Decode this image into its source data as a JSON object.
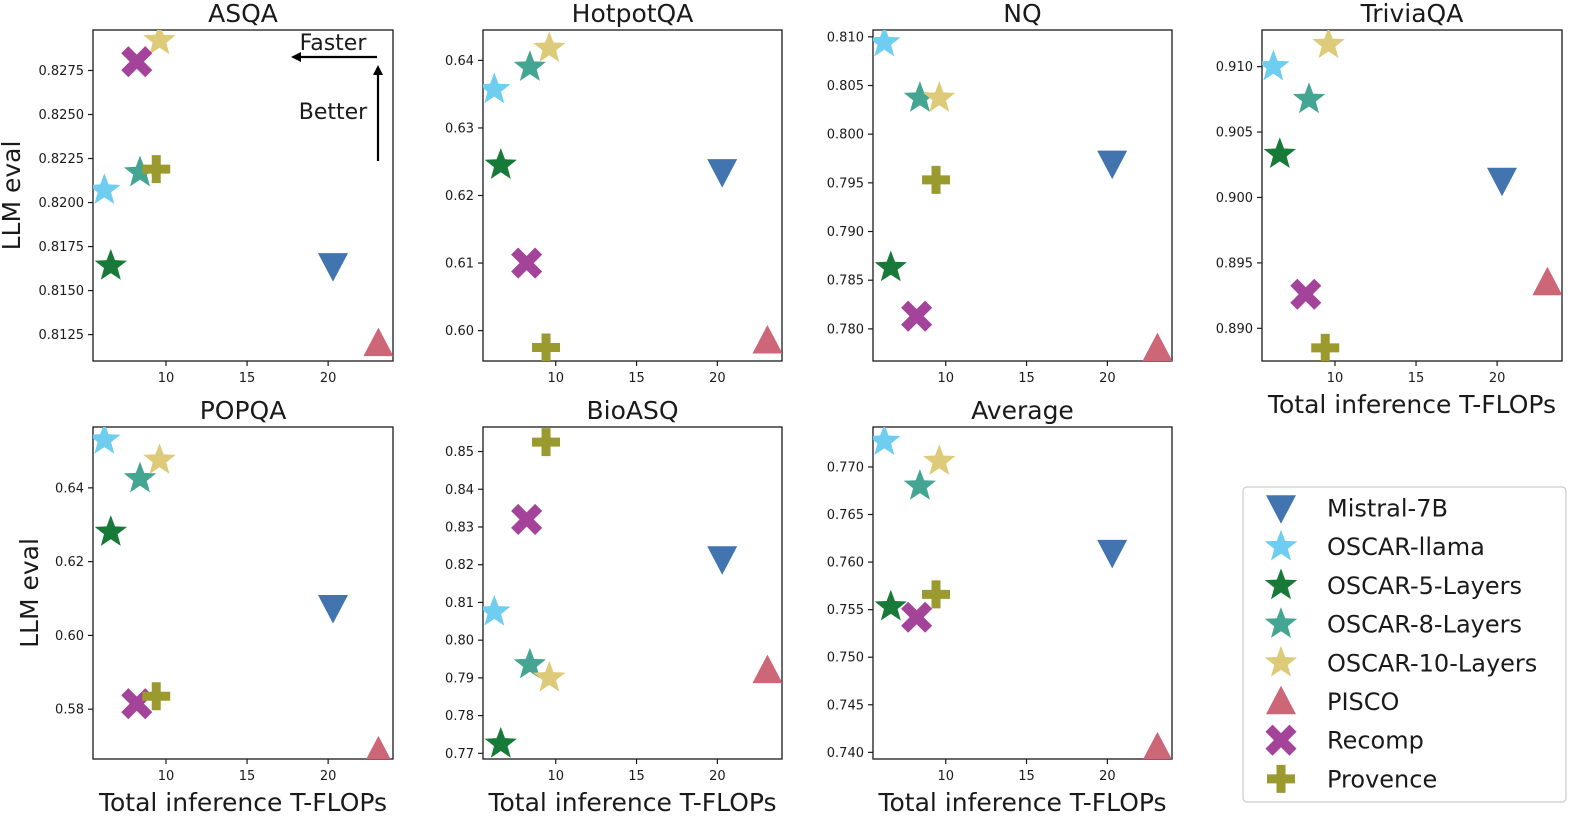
{
  "figure_ylabel": "LLM eval",
  "figure_xlabel": "Total inference T-FLOPs",
  "annotations": {
    "faster": "Faster",
    "better": "Better"
  },
  "legend": [
    {
      "name": "Mistral-7B",
      "marker": "triangle-down",
      "color": "#4274b0"
    },
    {
      "name": "OSCAR-llama",
      "marker": "star",
      "color": "#6fcdef"
    },
    {
      "name": "OSCAR-5-Layers",
      "marker": "star",
      "color": "#177a39"
    },
    {
      "name": "OSCAR-8-Layers",
      "marker": "star",
      "color": "#44a593"
    },
    {
      "name": "OSCAR-10-Layers",
      "marker": "star",
      "color": "#ddcb79"
    },
    {
      "name": "PISCO",
      "marker": "triangle-up",
      "color": "#cd6677"
    },
    {
      "name": "Recomp",
      "marker": "x",
      "color": "#a3439a"
    },
    {
      "name": "Provence",
      "marker": "plus",
      "color": "#9a9a2f"
    }
  ],
  "chart_data": [
    {
      "type": "scatter",
      "title": "ASQA",
      "xlabel": "",
      "ylabel": "LLM eval",
      "xlim": [
        5.5,
        24
      ],
      "ylim": [
        0.811,
        0.8298
      ],
      "xticks": [
        "10",
        "15",
        "20"
      ],
      "yticks": [
        "0.8125",
        "0.8150",
        "0.8175",
        "0.8200",
        "0.8225",
        "0.8250",
        "0.8275"
      ],
      "points": [
        {
          "series": "Mistral-7B",
          "x": 20.3,
          "y": 0.8164
        },
        {
          "series": "OSCAR-llama",
          "x": 6.2,
          "y": 0.8207
        },
        {
          "series": "OSCAR-5-Layers",
          "x": 6.6,
          "y": 0.8164
        },
        {
          "series": "OSCAR-8-Layers",
          "x": 8.4,
          "y": 0.8217
        },
        {
          "series": "OSCAR-10-Layers",
          "x": 9.6,
          "y": 0.8292
        },
        {
          "series": "PISCO",
          "x": 23.1,
          "y": 0.812
        },
        {
          "series": "Recomp",
          "x": 8.2,
          "y": 0.828
        },
        {
          "series": "Provence",
          "x": 9.4,
          "y": 0.8219
        }
      ]
    },
    {
      "type": "scatter",
      "title": "HotpotQA",
      "xlabel": "",
      "ylabel": "",
      "xlim": [
        5.5,
        24
      ],
      "ylim": [
        0.5955,
        0.6445
      ],
      "xticks": [
        "10",
        "15",
        "20"
      ],
      "yticks": [
        "0.60",
        "0.61",
        "0.62",
        "0.63",
        "0.64"
      ],
      "points": [
        {
          "series": "Mistral-7B",
          "x": 20.3,
          "y": 0.6235
        },
        {
          "series": "OSCAR-llama",
          "x": 6.2,
          "y": 0.6357
        },
        {
          "series": "OSCAR-5-Layers",
          "x": 6.6,
          "y": 0.6245
        },
        {
          "series": "OSCAR-8-Layers",
          "x": 8.4,
          "y": 0.639
        },
        {
          "series": "OSCAR-10-Layers",
          "x": 9.6,
          "y": 0.6418
        },
        {
          "series": "PISCO",
          "x": 23.1,
          "y": 0.5985
        },
        {
          "series": "Recomp",
          "x": 8.2,
          "y": 0.61
        },
        {
          "series": "Provence",
          "x": 9.4,
          "y": 0.5975
        }
      ]
    },
    {
      "type": "scatter",
      "title": "NQ",
      "xlabel": "",
      "ylabel": "",
      "xlim": [
        5.5,
        24
      ],
      "ylim": [
        0.7767,
        0.8107
      ],
      "xticks": [
        "10",
        "15",
        "20"
      ],
      "yticks": [
        "0.780",
        "0.785",
        "0.790",
        "0.795",
        "0.800",
        "0.805",
        "0.810"
      ],
      "points": [
        {
          "series": "Mistral-7B",
          "x": 20.3,
          "y": 0.797
        },
        {
          "series": "OSCAR-llama",
          "x": 6.2,
          "y": 0.8094
        },
        {
          "series": "OSCAR-5-Layers",
          "x": 6.6,
          "y": 0.7863
        },
        {
          "series": "OSCAR-8-Layers",
          "x": 8.4,
          "y": 0.8037
        },
        {
          "series": "OSCAR-10-Layers",
          "x": 9.6,
          "y": 0.8037
        },
        {
          "series": "PISCO",
          "x": 23.1,
          "y": 0.778
        },
        {
          "series": "Recomp",
          "x": 8.2,
          "y": 0.7813
        },
        {
          "series": "Provence",
          "x": 9.4,
          "y": 0.7953
        }
      ]
    },
    {
      "type": "scatter",
      "title": "TriviaQA",
      "xlabel": "Total inference T-FLOPs",
      "ylabel": "",
      "xlim": [
        5.5,
        24
      ],
      "ylim": [
        0.8875,
        0.9128
      ],
      "xticks": [
        "10",
        "15",
        "20"
      ],
      "yticks": [
        "0.890",
        "0.895",
        "0.900",
        "0.905",
        "0.910"
      ],
      "points": [
        {
          "series": "Mistral-7B",
          "x": 20.3,
          "y": 0.9013
        },
        {
          "series": "OSCAR-llama",
          "x": 6.2,
          "y": 0.91
        },
        {
          "series": "OSCAR-5-Layers",
          "x": 6.6,
          "y": 0.9033
        },
        {
          "series": "OSCAR-8-Layers",
          "x": 8.4,
          "y": 0.9075
        },
        {
          "series": "OSCAR-10-Layers",
          "x": 9.6,
          "y": 0.9117
        },
        {
          "series": "PISCO",
          "x": 23.1,
          "y": 0.8935
        },
        {
          "series": "Recomp",
          "x": 8.2,
          "y": 0.8926
        },
        {
          "series": "Provence",
          "x": 9.4,
          "y": 0.8885
        }
      ]
    },
    {
      "type": "scatter",
      "title": "POPQA",
      "xlabel": "Total inference T-FLOPs",
      "ylabel": "LLM eval",
      "xlim": [
        5.5,
        24
      ],
      "ylim": [
        0.5665,
        0.6565
      ],
      "xticks": [
        "10",
        "15",
        "20"
      ],
      "yticks": [
        "0.58",
        "0.60",
        "0.62",
        "0.64"
      ],
      "points": [
        {
          "series": "Mistral-7B",
          "x": 20.3,
          "y": 0.6075
        },
        {
          "series": "OSCAR-llama",
          "x": 6.2,
          "y": 0.653
        },
        {
          "series": "OSCAR-5-Layers",
          "x": 6.6,
          "y": 0.628
        },
        {
          "series": "OSCAR-8-Layers",
          "x": 8.4,
          "y": 0.6425
        },
        {
          "series": "OSCAR-10-Layers",
          "x": 9.6,
          "y": 0.6475
        },
        {
          "series": "PISCO",
          "x": 23.1,
          "y": 0.5685
        },
        {
          "series": "Recomp",
          "x": 8.2,
          "y": 0.5815
        },
        {
          "series": "Provence",
          "x": 9.4,
          "y": 0.5835
        }
      ]
    },
    {
      "type": "scatter",
      "title": "BioASQ",
      "xlabel": "Total inference T-FLOPs",
      "ylabel": "",
      "xlim": [
        5.5,
        24
      ],
      "ylim": [
        0.7685,
        0.8565
      ],
      "xticks": [
        "10",
        "15",
        "20"
      ],
      "yticks": [
        "0.77",
        "0.78",
        "0.79",
        "0.80",
        "0.81",
        "0.82",
        "0.83",
        "0.84",
        "0.85"
      ],
      "points": [
        {
          "series": "Mistral-7B",
          "x": 20.3,
          "y": 0.8215
        },
        {
          "series": "OSCAR-llama",
          "x": 6.2,
          "y": 0.8075
        },
        {
          "series": "OSCAR-5-Layers",
          "x": 6.6,
          "y": 0.7725
        },
        {
          "series": "OSCAR-8-Layers",
          "x": 8.4,
          "y": 0.7935
        },
        {
          "series": "OSCAR-10-Layers",
          "x": 9.6,
          "y": 0.79
        },
        {
          "series": "PISCO",
          "x": 23.1,
          "y": 0.792
        },
        {
          "series": "Recomp",
          "x": 8.2,
          "y": 0.832
        },
        {
          "series": "Provence",
          "x": 9.4,
          "y": 0.8525
        }
      ]
    },
    {
      "type": "scatter",
      "title": "Average",
      "xlabel": "Total inference T-FLOPs",
      "ylabel": "",
      "xlim": [
        5.5,
        24
      ],
      "ylim": [
        0.7393,
        0.7742
      ],
      "xticks": [
        "10",
        "15",
        "20"
      ],
      "yticks": [
        "0.740",
        "0.745",
        "0.750",
        "0.755",
        "0.760",
        "0.765",
        "0.770"
      ],
      "points": [
        {
          "series": "Mistral-7B",
          "x": 20.3,
          "y": 0.761
        },
        {
          "series": "OSCAR-llama",
          "x": 6.2,
          "y": 0.7727
        },
        {
          "series": "OSCAR-5-Layers",
          "x": 6.6,
          "y": 0.7553
        },
        {
          "series": "OSCAR-8-Layers",
          "x": 8.4,
          "y": 0.768
        },
        {
          "series": "OSCAR-10-Layers",
          "x": 9.6,
          "y": 0.7706
        },
        {
          "series": "PISCO",
          "x": 23.1,
          "y": 0.7405
        },
        {
          "series": "Recomp",
          "x": 8.2,
          "y": 0.7542
        },
        {
          "series": "Provence",
          "x": 9.4,
          "y": 0.7566
        }
      ]
    }
  ]
}
